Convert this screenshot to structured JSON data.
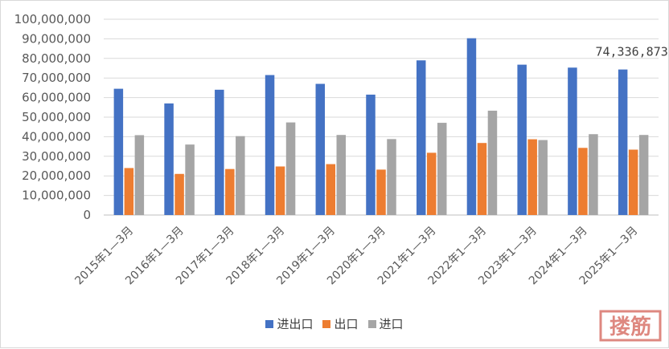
{
  "chart_data": {
    "type": "bar",
    "categories": [
      "2015年1—3月",
      "2016年1—3月",
      "2017年1—3月",
      "2018年1—3月",
      "2019年1—3月",
      "2020年1—3月",
      "2021年1—3月",
      "2022年1—3月",
      "2023年1—3月",
      "2024年1—3月",
      "2025年1—3月"
    ],
    "series": [
      {
        "name": "进出口",
        "color": "#4472c4",
        "values": [
          64500000,
          57000000,
          64000000,
          71500000,
          67000000,
          61500000,
          79000000,
          90300000,
          76800000,
          75300000,
          74336873
        ]
      },
      {
        "name": "出口",
        "color": "#ed7d31",
        "values": [
          24000000,
          21000000,
          23500000,
          24800000,
          26000000,
          23200000,
          31800000,
          36800000,
          38700000,
          34300000,
          33400000
        ]
      },
      {
        "name": "进口",
        "color": "#a5a5a5",
        "values": [
          40800000,
          36000000,
          40300000,
          47300000,
          40900000,
          38800000,
          47100000,
          53300000,
          38300000,
          41300000,
          40900000
        ]
      }
    ],
    "yticks": [
      "0",
      "10,000,000",
      "20,000,000",
      "30,000,000",
      "40,000,000",
      "50,000,000",
      "60,000,000",
      "70,000,000",
      "80,000,000",
      "90,000,000",
      "100,000,000"
    ],
    "ylim": [
      0,
      100000000
    ],
    "grid": true,
    "legend": "bottom",
    "annotations": [
      {
        "category_index": 10,
        "series_index": 0,
        "text": "74,336,873"
      }
    ]
  },
  "watermark_text": "搂筋"
}
